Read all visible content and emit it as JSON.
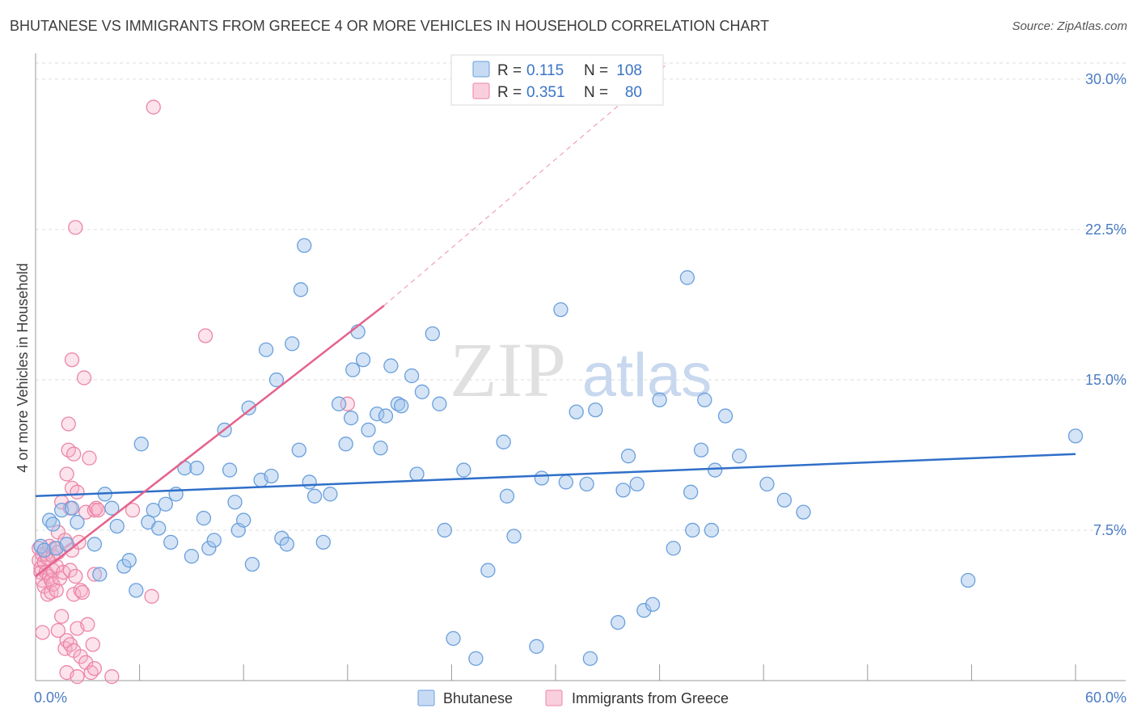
{
  "title": "BHUTANESE VS IMMIGRANTS FROM GREECE 4 OR MORE VEHICLES IN HOUSEHOLD CORRELATION CHART",
  "source": "Source: ZipAtlas.com",
  "watermark": {
    "zip": "ZIP",
    "atlas": "atlas"
  },
  "colors": {
    "blue": "#6a9fdc",
    "blue_fill": "rgba(160,195,235,0.45)",
    "blue_line": "#2f6fc9",
    "pink": "#ec86a6",
    "pink_fill": "rgba(245,175,200,0.35)",
    "pink_line": "#e5628c",
    "axis_label": "#4a7cc4",
    "grid": "#dddddd"
  },
  "legend": {
    "r_label": "R =",
    "n_label": "N =",
    "series": [
      {
        "name": "Bhutanese",
        "r": "0.115",
        "n": "108"
      },
      {
        "name": "Immigrants from Greece",
        "r": "0.351",
        "n": "80"
      }
    ]
  },
  "chart_data": {
    "type": "scatter",
    "title": "BHUTANESE VS IMMIGRANTS FROM GREECE 4 OR MORE VEHICLES IN HOUSEHOLD CORRELATION CHART",
    "xlabel": "",
    "ylabel": "4 or more Vehicles in Household",
    "xlim": [
      0,
      60
    ],
    "ylim": [
      0,
      30.8
    ],
    "x_tick_labels": [
      "0.0%",
      "60.0%"
    ],
    "y_ticks": [
      7.5,
      15.0,
      22.5,
      30.0
    ],
    "y_tick_labels": [
      "7.5%",
      "15.0%",
      "22.5%",
      "30.0%"
    ],
    "grid": true,
    "legend_position": "top-center",
    "series": [
      {
        "name": "Bhutanese",
        "color": "#6a9fdc",
        "trend": {
          "x": [
            0,
            60
          ],
          "y": [
            9.2,
            11.3
          ],
          "dashed_extension": false
        },
        "points": [
          [
            0.3,
            6.7
          ],
          [
            0.5,
            6.5
          ],
          [
            0.8,
            8.0
          ],
          [
            1.0,
            7.8
          ],
          [
            1.2,
            6.6
          ],
          [
            1.5,
            8.5
          ],
          [
            1.8,
            6.8
          ],
          [
            2.1,
            8.6
          ],
          [
            2.4,
            7.9
          ],
          [
            3.4,
            6.8
          ],
          [
            3.7,
            5.3
          ],
          [
            4.0,
            9.3
          ],
          [
            4.4,
            8.6
          ],
          [
            4.7,
            7.7
          ],
          [
            5.1,
            5.7
          ],
          [
            5.4,
            6.0
          ],
          [
            5.8,
            4.5
          ],
          [
            6.1,
            11.8
          ],
          [
            6.5,
            7.9
          ],
          [
            6.8,
            8.5
          ],
          [
            7.1,
            7.6
          ],
          [
            7.5,
            8.8
          ],
          [
            7.8,
            6.9
          ],
          [
            8.1,
            9.3
          ],
          [
            8.6,
            10.6
          ],
          [
            9.0,
            6.2
          ],
          [
            9.3,
            10.6
          ],
          [
            9.7,
            8.1
          ],
          [
            10.0,
            6.6
          ],
          [
            10.3,
            7.0
          ],
          [
            10.9,
            12.5
          ],
          [
            11.2,
            10.5
          ],
          [
            11.5,
            8.9
          ],
          [
            11.7,
            7.5
          ],
          [
            12.0,
            8.0
          ],
          [
            12.3,
            13.6
          ],
          [
            12.5,
            5.8
          ],
          [
            13.0,
            10.0
          ],
          [
            13.3,
            16.5
          ],
          [
            13.6,
            10.2
          ],
          [
            13.9,
            15.0
          ],
          [
            14.2,
            7.1
          ],
          [
            14.5,
            6.8
          ],
          [
            14.8,
            16.8
          ],
          [
            15.2,
            11.5
          ],
          [
            15.3,
            19.5
          ],
          [
            15.5,
            21.7
          ],
          [
            15.8,
            9.9
          ],
          [
            16.1,
            9.2
          ],
          [
            16.6,
            6.9
          ],
          [
            17.0,
            9.3
          ],
          [
            17.5,
            13.8
          ],
          [
            17.9,
            11.8
          ],
          [
            18.2,
            13.1
          ],
          [
            18.3,
            15.5
          ],
          [
            18.6,
            17.4
          ],
          [
            18.9,
            16.0
          ],
          [
            19.2,
            12.5
          ],
          [
            19.7,
            13.3
          ],
          [
            19.9,
            11.6
          ],
          [
            20.2,
            13.2
          ],
          [
            20.5,
            15.7
          ],
          [
            20.9,
            13.8
          ],
          [
            21.1,
            13.7
          ],
          [
            21.7,
            15.2
          ],
          [
            22.0,
            10.3
          ],
          [
            22.3,
            14.4
          ],
          [
            22.9,
            17.3
          ],
          [
            23.3,
            13.8
          ],
          [
            23.6,
            7.5
          ],
          [
            24.1,
            2.1
          ],
          [
            24.7,
            10.5
          ],
          [
            25.4,
            1.1
          ],
          [
            26.1,
            5.5
          ],
          [
            27.0,
            11.9
          ],
          [
            27.2,
            9.2
          ],
          [
            27.6,
            7.2
          ],
          [
            28.9,
            1.7
          ],
          [
            29.2,
            10.1
          ],
          [
            30.3,
            18.5
          ],
          [
            30.6,
            9.9
          ],
          [
            31.2,
            13.4
          ],
          [
            31.8,
            9.8
          ],
          [
            32.0,
            1.1
          ],
          [
            32.3,
            13.5
          ],
          [
            33.6,
            2.9
          ],
          [
            33.9,
            9.5
          ],
          [
            34.2,
            11.2
          ],
          [
            34.7,
            9.8
          ],
          [
            35.1,
            3.5
          ],
          [
            35.6,
            3.8
          ],
          [
            36.0,
            14.0
          ],
          [
            36.8,
            6.6
          ],
          [
            37.6,
            20.1
          ],
          [
            37.8,
            9.4
          ],
          [
            37.9,
            7.5
          ],
          [
            38.4,
            11.5
          ],
          [
            38.6,
            14.0
          ],
          [
            39.0,
            7.5
          ],
          [
            39.2,
            10.5
          ],
          [
            39.8,
            13.2
          ],
          [
            40.6,
            11.2
          ],
          [
            42.2,
            9.8
          ],
          [
            43.2,
            9.0
          ],
          [
            44.3,
            8.4
          ],
          [
            53.8,
            5.0
          ],
          [
            60.0,
            12.2
          ]
        ]
      },
      {
        "name": "Immigrants from Greece",
        "color": "#ec86a6",
        "trend": {
          "x": [
            0,
            20.1
          ],
          "y": [
            5.2,
            18.7
          ],
          "dashed_to": [
            36.5,
            30.8
          ]
        },
        "points": [
          [
            0.2,
            6.6
          ],
          [
            0.2,
            6.0
          ],
          [
            0.3,
            5.6
          ],
          [
            0.3,
            5.4
          ],
          [
            0.4,
            6.3
          ],
          [
            0.4,
            5.0
          ],
          [
            0.4,
            2.4
          ],
          [
            0.5,
            5.9
          ],
          [
            0.5,
            4.7
          ],
          [
            0.6,
            6.3
          ],
          [
            0.6,
            5.4
          ],
          [
            0.7,
            6.1
          ],
          [
            0.7,
            4.3
          ],
          [
            0.8,
            5.2
          ],
          [
            0.8,
            6.7
          ],
          [
            0.9,
            5.0
          ],
          [
            0.9,
            4.4
          ],
          [
            1.0,
            6.2
          ],
          [
            1.0,
            5.5
          ],
          [
            1.0,
            4.8
          ],
          [
            1.1,
            6.6
          ],
          [
            1.2,
            5.7
          ],
          [
            1.2,
            4.5
          ],
          [
            1.3,
            6.4
          ],
          [
            1.3,
            2.5
          ],
          [
            1.3,
            7.4
          ],
          [
            1.4,
            5.1
          ],
          [
            1.5,
            3.2
          ],
          [
            1.5,
            8.9
          ],
          [
            1.6,
            5.4
          ],
          [
            1.7,
            7.0
          ],
          [
            1.7,
            1.6
          ],
          [
            1.8,
            10.3
          ],
          [
            1.8,
            2.0
          ],
          [
            1.8,
            0.4
          ],
          [
            1.9,
            12.8
          ],
          [
            1.9,
            11.5
          ],
          [
            2.0,
            5.5
          ],
          [
            2.0,
            8.6
          ],
          [
            2.0,
            1.8
          ],
          [
            2.1,
            16.0
          ],
          [
            2.1,
            9.6
          ],
          [
            2.1,
            6.5
          ],
          [
            2.2,
            4.3
          ],
          [
            2.2,
            1.5
          ],
          [
            2.2,
            11.3
          ],
          [
            2.3,
            22.6
          ],
          [
            2.3,
            5.2
          ],
          [
            2.4,
            9.4
          ],
          [
            2.4,
            2.6
          ],
          [
            2.4,
            0.2
          ],
          [
            2.5,
            6.9
          ],
          [
            2.6,
            4.5
          ],
          [
            2.6,
            1.2
          ],
          [
            2.7,
            4.4
          ],
          [
            2.8,
            15.1
          ],
          [
            2.9,
            8.4
          ],
          [
            2.9,
            0.9
          ],
          [
            3.0,
            2.8
          ],
          [
            3.1,
            11.1
          ],
          [
            3.2,
            0.4
          ],
          [
            3.3,
            1.8
          ],
          [
            3.4,
            0.6
          ],
          [
            3.4,
            5.3
          ],
          [
            3.4,
            8.5
          ],
          [
            3.5,
            8.6
          ],
          [
            3.6,
            8.5
          ],
          [
            4.4,
            0.2
          ],
          [
            5.6,
            8.5
          ],
          [
            6.7,
            4.2
          ],
          [
            6.8,
            28.6
          ],
          [
            9.8,
            17.2
          ],
          [
            18.0,
            13.8
          ]
        ]
      }
    ]
  }
}
